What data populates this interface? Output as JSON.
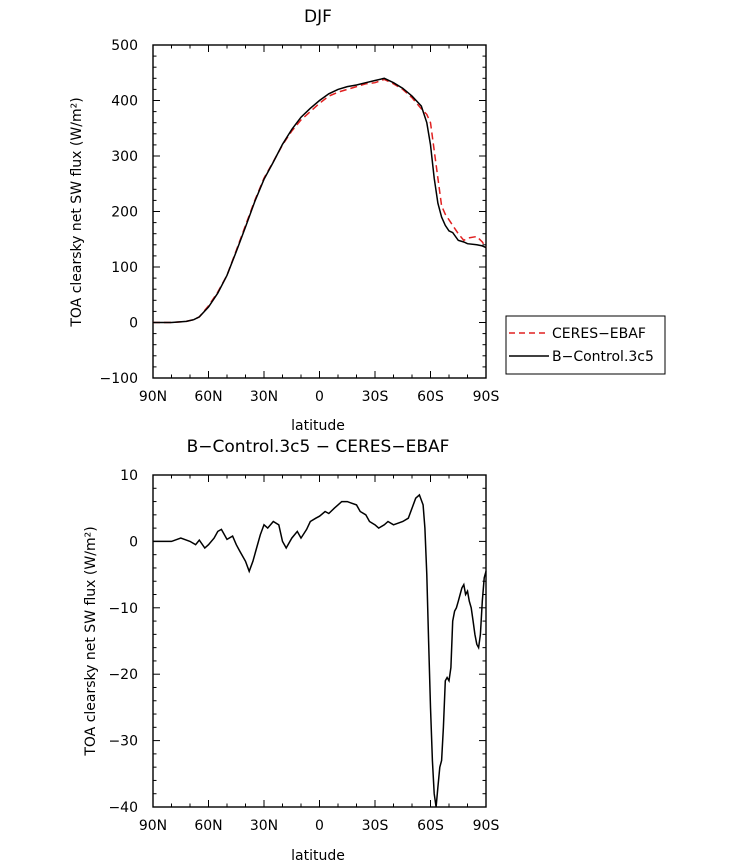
{
  "chart_data": [
    {
      "type": "line",
      "title": "DJF",
      "xlabel": "latitude",
      "ylabel": "TOA clearsky net SW flux (W/m²)",
      "xlim": [
        90,
        -90
      ],
      "ylim": [
        -100,
        500
      ],
      "xticks": [
        90,
        60,
        30,
        0,
        -30,
        -60,
        -90
      ],
      "xtick_labels": [
        "90N",
        "60N",
        "30N",
        "0",
        "30S",
        "60S",
        "90S"
      ],
      "yticks": [
        -100,
        0,
        100,
        200,
        300,
        400,
        500
      ],
      "ytick_labels": [
        "−100",
        "0",
        "100",
        "200",
        "300",
        "400",
        "500"
      ],
      "legend": [
        {
          "label": "CERES−EBAF",
          "color": "#e02020",
          "dash": true
        },
        {
          "label": "B−Control.3c5",
          "color": "#000000",
          "dash": false
        }
      ],
      "legend_position": "right",
      "series": [
        {
          "name": "CERES-EBAF",
          "color": "#e02020",
          "dashed": true,
          "x": [
            90,
            80,
            72,
            68,
            65,
            60,
            55,
            50,
            45,
            40,
            35,
            30,
            25,
            20,
            15,
            10,
            5,
            0,
            -5,
            -10,
            -15,
            -20,
            -25,
            -30,
            -35,
            -40,
            -45,
            -50,
            -55,
            -58,
            -60,
            -62,
            -64,
            -66,
            -68,
            -70,
            -72,
            -75,
            -78,
            -80,
            -85,
            -88,
            -90
          ],
          "y": [
            0,
            0,
            2,
            5,
            10,
            30,
            55,
            85,
            130,
            175,
            220,
            260,
            290,
            320,
            345,
            365,
            380,
            395,
            408,
            415,
            420,
            425,
            430,
            432,
            438,
            430,
            420,
            405,
            385,
            375,
            360,
            310,
            260,
            210,
            195,
            185,
            175,
            160,
            148,
            152,
            155,
            145,
            135
          ]
        },
        {
          "name": "B-Control.3c5",
          "color": "#000000",
          "dashed": false,
          "x": [
            90,
            80,
            72,
            68,
            65,
            60,
            55,
            50,
            45,
            40,
            35,
            30,
            25,
            20,
            15,
            10,
            5,
            0,
            -5,
            -10,
            -15,
            -20,
            -25,
            -30,
            -35,
            -40,
            -45,
            -50,
            -55,
            -58,
            -60,
            -62,
            -64,
            -66,
            -68,
            -70,
            -72,
            -75,
            -78,
            -80,
            -85,
            -88,
            -90
          ],
          "y": [
            0,
            0,
            2,
            5,
            10,
            28,
            53,
            85,
            128,
            172,
            218,
            258,
            289,
            321,
            348,
            370,
            386,
            400,
            412,
            420,
            425,
            428,
            432,
            436,
            440,
            432,
            422,
            408,
            390,
            360,
            320,
            260,
            215,
            190,
            175,
            165,
            162,
            148,
            145,
            142,
            140,
            138,
            135
          ]
        }
      ]
    },
    {
      "type": "line",
      "title": "B−Control.3c5 − CERES−EBAF",
      "xlabel": "latitude",
      "ylabel": "TOA clearsky net SW flux (W/m²)",
      "xlim": [
        90,
        -90
      ],
      "ylim": [
        -40,
        10
      ],
      "xticks": [
        90,
        60,
        30,
        0,
        -30,
        -60,
        -90
      ],
      "xtick_labels": [
        "90N",
        "60N",
        "30N",
        "0",
        "30S",
        "60S",
        "90S"
      ],
      "yticks": [
        -40,
        -30,
        -20,
        -10,
        0,
        10
      ],
      "ytick_labels": [
        "−40",
        "−30",
        "−20",
        "−10",
        "0",
        "10"
      ],
      "series": [
        {
          "name": "B-Control.3c5 - CERES-EBAF",
          "color": "#000000",
          "dashed": false,
          "x": [
            90,
            80,
            75,
            72,
            70,
            67,
            65,
            62,
            60,
            57,
            55,
            53,
            50,
            47,
            45,
            43,
            40,
            38,
            36,
            34,
            32,
            30,
            28,
            25,
            22,
            20,
            18,
            15,
            12,
            10,
            7,
            5,
            2,
            0,
            -3,
            -5,
            -8,
            -10,
            -12,
            -15,
            -17,
            -20,
            -22,
            -25,
            -27,
            -30,
            -32,
            -35,
            -37,
            -40,
            -43,
            -45,
            -48,
            -50,
            -52,
            -54,
            -56,
            -57,
            -58,
            -59,
            -60,
            -61,
            -62,
            -63,
            -64,
            -65,
            -66,
            -67,
            -68,
            -69,
            -70,
            -71,
            -72,
            -73,
            -74,
            -75,
            -76,
            -77,
            -78,
            -79,
            -80,
            -81,
            -82,
            -83,
            -84,
            -85,
            -86,
            -87,
            -88,
            -89,
            -90
          ],
          "y": [
            0,
            0,
            0.5,
            0.2,
            0,
            -0.5,
            0.2,
            -1,
            -0.5,
            0.5,
            1.5,
            1.8,
            0.3,
            0.8,
            -0.5,
            -1.5,
            -3,
            -4.5,
            -3,
            -1,
            1,
            2.5,
            2,
            3,
            2.5,
            0,
            -1,
            0.5,
            1.5,
            0.5,
            1.8,
            3,
            3.5,
            3.8,
            4.5,
            4.2,
            5,
            5.5,
            6,
            6,
            5.8,
            5.5,
            4.5,
            4,
            3,
            2.5,
            2,
            2.5,
            3,
            2.5,
            2.8,
            3,
            3.5,
            5,
            6.5,
            7,
            5.5,
            2,
            -5,
            -15,
            -25,
            -33,
            -38,
            -40,
            -37,
            -34,
            -33,
            -28,
            -21,
            -20.5,
            -21,
            -19,
            -12,
            -10.5,
            -10,
            -9,
            -8,
            -7,
            -6.5,
            -8,
            -7.5,
            -9,
            -10,
            -12,
            -14,
            -15.5,
            -16,
            -14,
            -9,
            -5.5,
            -4.5
          ]
        }
      ]
    }
  ]
}
